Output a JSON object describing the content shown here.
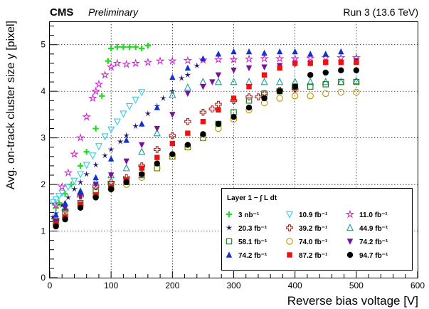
{
  "header": {
    "experiment": "CMS",
    "status": "Preliminary",
    "run": "Run 3 (13.6 TeV)"
  },
  "chart_data": {
    "type": "scatter",
    "xlabel": "Reverse bias voltage [V]",
    "ylabel": "Avg. on-track cluster size y [pixel]",
    "xlim": [
      0,
      600
    ],
    "ylim": [
      0,
      5.5
    ],
    "xticks": [
      0,
      100,
      200,
      300,
      400,
      500,
      600
    ],
    "yticks": [
      0,
      1,
      2,
      3,
      4,
      5
    ],
    "grid": true,
    "legend_title": "Layer 1 − ∫ L dt",
    "legend_placement": "bottom-right",
    "series": [
      {
        "name": "3 nb⁻¹",
        "color": "#22dd22",
        "marker": "plus",
        "x": [
          10,
          15,
          25,
          35,
          50,
          60,
          75,
          85,
          95,
          100,
          110,
          120,
          130,
          140,
          150,
          160
        ],
        "y": [
          1.5,
          1.6,
          1.8,
          2.0,
          2.4,
          2.7,
          3.2,
          3.9,
          4.65,
          4.92,
          4.95,
          4.95,
          4.95,
          4.95,
          4.92,
          4.98
        ]
      },
      {
        "name": "10.9 fb⁻¹",
        "color": "#33ccee",
        "marker": "triangle-down-open",
        "x": [
          5,
          10,
          15,
          20,
          30,
          40,
          50,
          60,
          70,
          80,
          90,
          100,
          110,
          120,
          130,
          140,
          150
        ],
        "y": [
          1.62,
          1.68,
          1.75,
          1.82,
          1.95,
          2.08,
          2.22,
          2.42,
          2.62,
          2.82,
          3.03,
          3.18,
          3.35,
          3.52,
          3.68,
          3.82,
          3.98
        ]
      },
      {
        "name": "11.0 fb⁻¹",
        "color": "#cc22cc",
        "marker": "star-open",
        "x": [
          10,
          20,
          30,
          40,
          50,
          60,
          70,
          75,
          80,
          90,
          100,
          110,
          125,
          140,
          160,
          180,
          200,
          225,
          250,
          275,
          300,
          325,
          350,
          375,
          400,
          425,
          450,
          475,
          500
        ],
        "y": [
          1.55,
          1.95,
          2.25,
          2.65,
          3.0,
          3.45,
          3.85,
          4.0,
          4.15,
          4.35,
          4.52,
          4.6,
          4.58,
          4.6,
          4.62,
          4.65,
          4.65,
          4.66,
          4.67,
          4.68,
          4.68,
          4.69,
          4.7,
          4.7,
          4.7,
          4.71,
          4.72,
          4.72,
          4.72
        ]
      },
      {
        "name": "20.3 fb⁻¹",
        "color": "#111166",
        "marker": "star",
        "x": [
          5,
          10,
          20,
          30,
          40,
          50,
          60,
          75,
          90,
          100,
          115,
          125,
          140,
          160,
          175,
          185,
          200,
          215,
          225,
          240
        ],
        "y": [
          1.3,
          1.38,
          1.55,
          1.72,
          1.9,
          2.05,
          2.22,
          2.42,
          2.62,
          2.75,
          2.92,
          3.05,
          3.25,
          3.52,
          3.68,
          3.85,
          4.0,
          4.28,
          4.35,
          4.55
        ]
      },
      {
        "name": "39.2 fb⁻¹",
        "color": "#aa2222",
        "marker": "cross-open",
        "x": [
          10,
          25,
          50,
          75,
          100,
          125,
          150,
          175,
          200,
          225,
          250,
          265,
          275,
          300,
          325,
          340,
          350,
          375,
          400
        ],
        "y": [
          1.25,
          1.45,
          1.75,
          1.95,
          2.05,
          2.15,
          2.4,
          2.75,
          3.05,
          3.35,
          3.55,
          3.62,
          3.72,
          3.8,
          3.88,
          3.88,
          3.95,
          4.02,
          4.05
        ]
      },
      {
        "name": "44.9 fb⁻¹",
        "color": "#229999",
        "marker": "triangle-up-open",
        "x": [
          10,
          25,
          50,
          75,
          100,
          125,
          150,
          175,
          200,
          225,
          250,
          275,
          300,
          325,
          350,
          375,
          400,
          425,
          450,
          475,
          500
        ],
        "y": [
          1.2,
          1.5,
          1.85,
          2.05,
          2.2,
          2.35,
          2.7,
          3.1,
          3.92,
          4.08,
          4.2,
          4.2,
          4.2,
          4.2,
          4.2,
          4.2,
          4.2,
          4.2,
          4.2,
          4.2,
          4.22
        ]
      },
      {
        "name": "58.1 fb⁻¹",
        "color": "#117711",
        "marker": "square-open",
        "x": [
          10,
          25,
          50,
          75,
          100,
          125,
          150,
          175,
          200,
          225,
          250,
          275,
          300,
          325,
          350,
          375,
          400,
          425,
          450,
          475,
          500
        ],
        "y": [
          1.2,
          1.4,
          1.6,
          1.85,
          2.0,
          2.05,
          2.2,
          2.35,
          2.6,
          2.8,
          3.0,
          3.3,
          3.55,
          3.8,
          3.95,
          4.0,
          4.1,
          4.1,
          4.15,
          4.2,
          4.2
        ]
      },
      {
        "name": "74.0 fb⁻¹",
        "color": "#bb9900",
        "marker": "circle-open",
        "x": [
          10,
          25,
          50,
          75,
          100,
          125,
          150,
          175,
          200,
          225,
          250,
          275,
          300,
          325,
          350,
          375,
          400,
          425,
          450,
          475,
          500
        ],
        "y": [
          1.15,
          1.3,
          1.55,
          1.75,
          1.9,
          2.0,
          2.15,
          2.35,
          2.6,
          2.8,
          3.0,
          3.2,
          3.4,
          3.6,
          3.75,
          3.85,
          3.9,
          3.9,
          3.95,
          3.98,
          3.98
        ]
      },
      {
        "name": "74.2 fb⁻¹",
        "color": "#771199",
        "marker": "triangle-down",
        "x": [
          10,
          25,
          50,
          75,
          100,
          125,
          150,
          175,
          200,
          225,
          250,
          265,
          275,
          300,
          325,
          350,
          375,
          400,
          425,
          450,
          475,
          500
        ],
        "y": [
          1.2,
          1.5,
          1.75,
          2.0,
          2.2,
          2.5,
          2.85,
          3.2,
          3.5,
          3.95,
          4.1,
          4.2,
          4.35,
          4.45,
          4.5,
          4.52,
          4.55,
          4.58,
          4.6,
          4.62,
          4.62,
          4.65
        ]
      },
      {
        "name": "74.2 fb⁻¹",
        "color": "#1133cc",
        "marker": "triangle-up",
        "x": [
          10,
          25,
          50,
          75,
          100,
          125,
          150,
          175,
          200,
          225,
          250,
          275,
          300,
          325,
          350,
          375,
          400,
          425,
          450,
          475,
          500
        ],
        "y": [
          1.35,
          1.6,
          1.85,
          2.15,
          2.55,
          2.95,
          3.3,
          3.65,
          4.3,
          4.5,
          4.7,
          4.8,
          4.85,
          4.85,
          4.82,
          4.85,
          4.85,
          4.8,
          4.8,
          4.85,
          4.65
        ]
      },
      {
        "name": "87.2 fb⁻¹",
        "color": "#ee1111",
        "marker": "square",
        "x": [
          10,
          25,
          50,
          75,
          100,
          125,
          150,
          175,
          200,
          225,
          250,
          275,
          300,
          325,
          350,
          375,
          400,
          425,
          450,
          475,
          500
        ],
        "y": [
          1.15,
          1.3,
          1.58,
          1.78,
          1.95,
          2.1,
          2.35,
          2.58,
          2.88,
          3.1,
          3.35,
          3.6,
          3.85,
          4.1,
          4.35,
          4.5,
          4.6,
          4.6,
          4.62,
          4.62,
          4.62
        ]
      },
      {
        "name": "94.7 fb⁻¹",
        "color": "#000000",
        "marker": "circle",
        "x": [
          10,
          25,
          50,
          75,
          100,
          125,
          150,
          175,
          200,
          225,
          250,
          275,
          300,
          325,
          350,
          375,
          400,
          425,
          450,
          475,
          500
        ],
        "y": [
          1.1,
          1.25,
          1.5,
          1.72,
          1.9,
          2.05,
          2.22,
          2.45,
          2.65,
          2.85,
          3.08,
          3.3,
          3.45,
          3.65,
          3.85,
          4.0,
          4.1,
          4.35,
          4.4,
          4.45,
          4.45
        ]
      }
    ]
  }
}
